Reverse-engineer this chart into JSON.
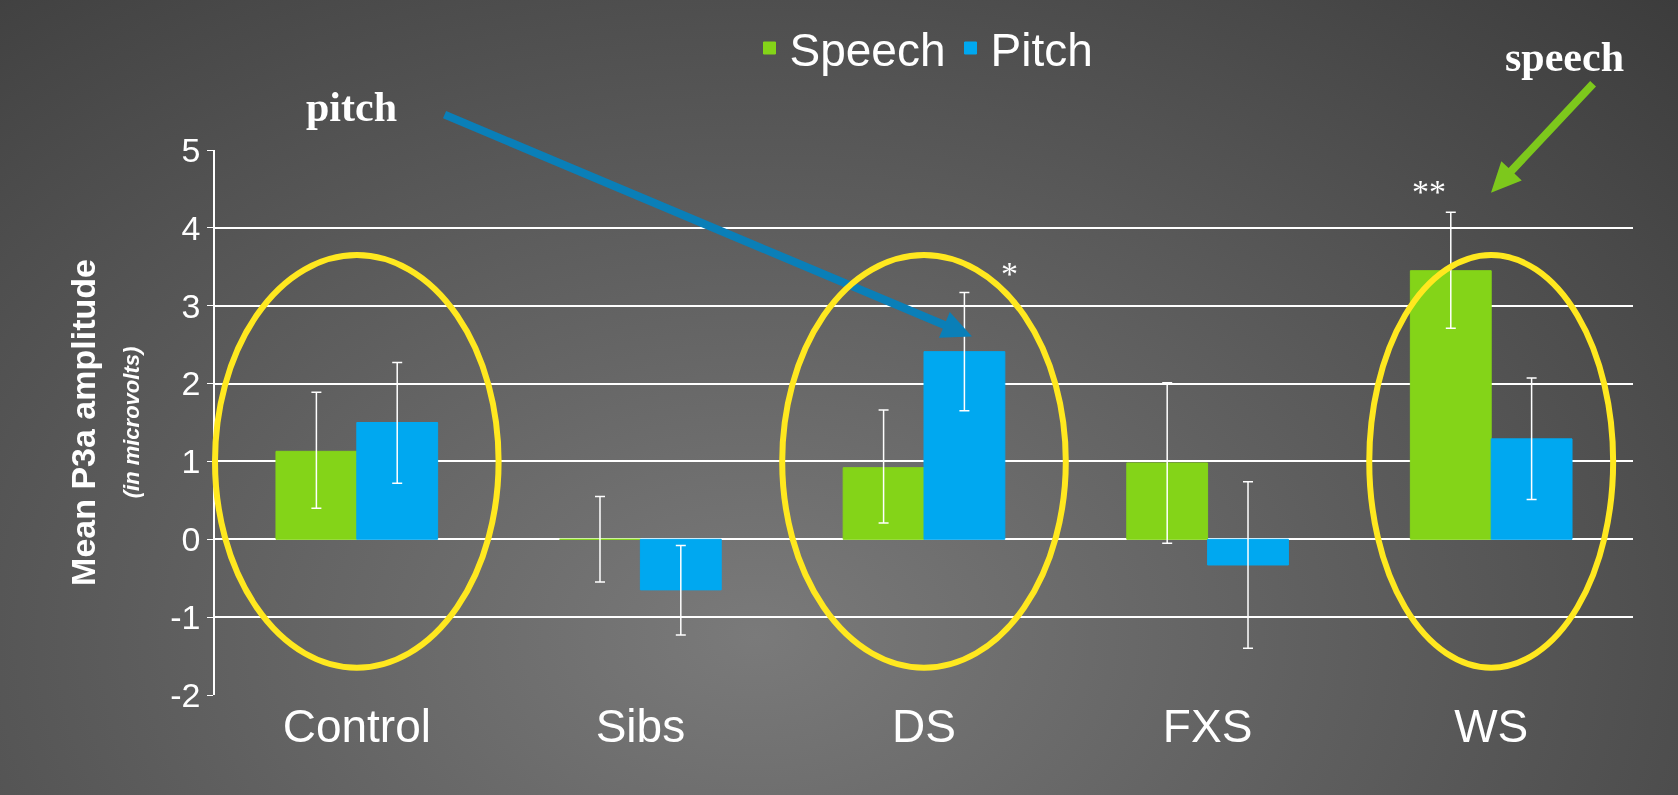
{
  "chart_data": {
    "type": "bar",
    "ylabel": "Mean P3a amplitude\n(in microvolts)",
    "categories": [
      "Control",
      "Sibs",
      "DS",
      "FXS",
      "WS"
    ],
    "series": [
      {
        "name": "Speech",
        "color": "#84d418",
        "values": [
          1.13,
          0,
          0.92,
          0.98,
          3.45
        ],
        "errors": [
          [
            0.4,
            1.89
          ],
          [
            -0.55,
            0.55
          ],
          [
            0.21,
            1.66
          ],
          [
            -0.05,
            2.01
          ],
          [
            2.71,
            4.2
          ]
        ]
      },
      {
        "name": "Pitch",
        "color": "#00a8f0",
        "values": [
          1.5,
          -0.65,
          2.41,
          -0.33,
          1.29
        ],
        "errors": [
          [
            0.72,
            2.27
          ],
          [
            -1.23,
            -0.08
          ],
          [
            1.65,
            3.17
          ],
          [
            -1.4,
            0.74
          ],
          [
            0.51,
            2.07
          ]
        ]
      }
    ],
    "ylim": [
      -2,
      5
    ],
    "yticks": [
      -2,
      -1,
      0,
      1,
      2,
      3,
      4,
      5
    ],
    "grid": "y",
    "legend": "top",
    "annotations": [
      "pitch",
      "speech",
      "*",
      "**"
    ]
  }
}
